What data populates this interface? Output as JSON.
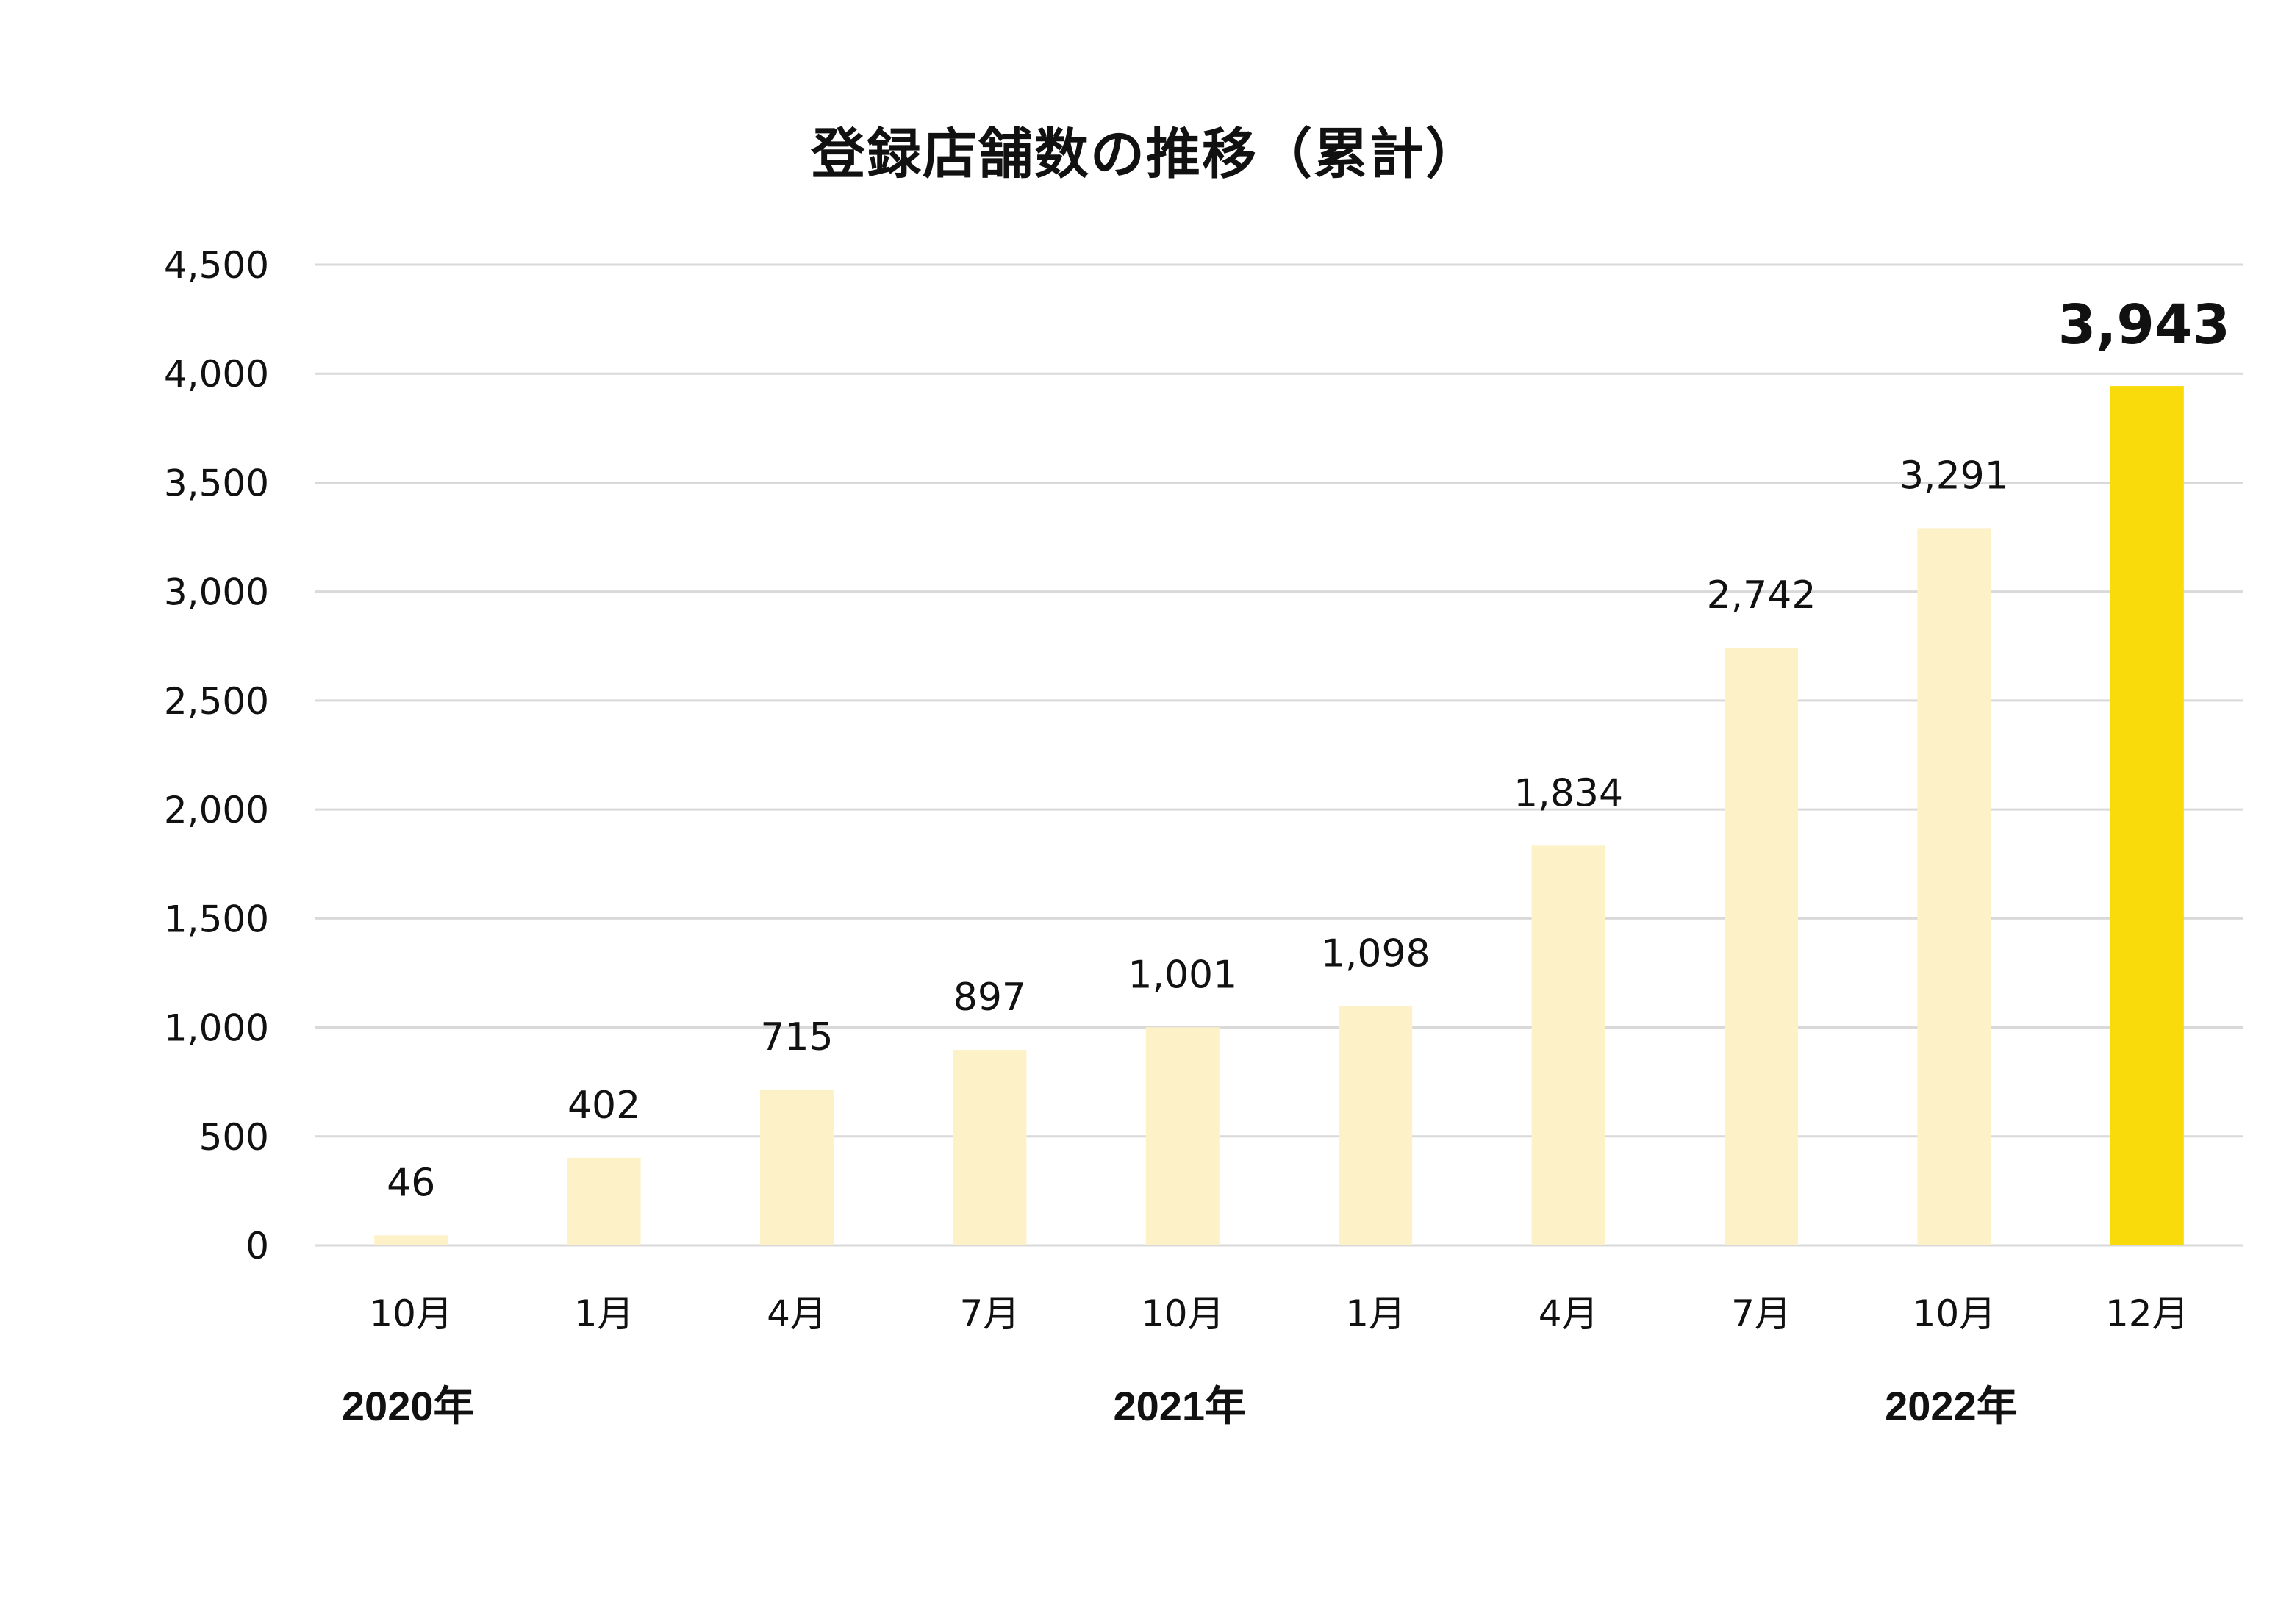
{
  "chart_data": {
    "type": "bar",
    "title": "登録店舗数の推移（累計）",
    "categories": [
      "10月",
      "1月",
      "4月",
      "7月",
      "10月",
      "1月",
      "4月",
      "7月",
      "10月",
      "12月"
    ],
    "values": [
      46,
      402,
      715,
      897,
      1001,
      1098,
      1834,
      2742,
      3291,
      3943
    ],
    "value_labels": [
      "46",
      "402",
      "715",
      "897",
      "1,001",
      "1,098",
      "1,834",
      "2,742",
      "3,291",
      "3,943"
    ],
    "year_labels": [
      {
        "label": "2020年",
        "category_index": 0
      },
      {
        "label": "2021年",
        "category_index": 4
      },
      {
        "label": "2022年",
        "category_index": 8
      }
    ],
    "ylim": [
      0,
      4500
    ],
    "yticks": [
      0,
      500,
      1000,
      1500,
      2000,
      2500,
      3000,
      3500,
      4000,
      4500
    ],
    "ytick_labels": [
      "0",
      "500",
      "1,000",
      "1,500",
      "2,000",
      "2,500",
      "3,000",
      "3,500",
      "4,000",
      "4,500"
    ],
    "grid": true,
    "highlight_index": 9,
    "colors": {
      "bar": "#fdf1c8",
      "highlight": "#f9da0a",
      "grid": "#d9d9d9"
    }
  }
}
